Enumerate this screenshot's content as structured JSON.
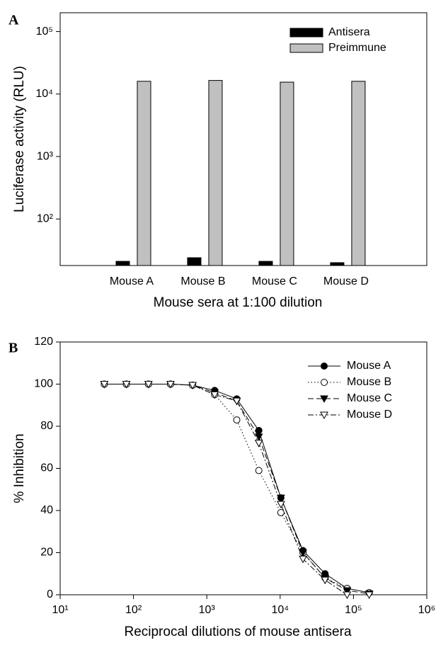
{
  "chart_data": [
    {
      "type": "bar",
      "panel_label": "A",
      "ylabel": "Luciferase activity (RLU)",
      "xlabel": "Mouse sera at 1:100 dilution",
      "categories": [
        "Mouse A",
        "Mouse B",
        "Mouse C",
        "Mouse D"
      ],
      "series": [
        {
          "name": "Antisera",
          "color": "#000000",
          "values": [
            21,
            24,
            21,
            20
          ]
        },
        {
          "name": "Preimmune",
          "color": "#c0c0c0",
          "values": [
            16000,
            16500,
            15500,
            16000
          ]
        }
      ],
      "ylog": true,
      "ylim": [
        18,
        200000
      ],
      "yticks": [
        {
          "value": 100,
          "label": "10²"
        },
        {
          "value": 1000,
          "label": "10³"
        },
        {
          "value": 10000,
          "label": "10⁴"
        },
        {
          "value": 100000,
          "label": "10⁵"
        }
      ],
      "legend": "upper right"
    },
    {
      "type": "line",
      "panel_label": "B",
      "ylabel": "% Inhibition",
      "xlabel": "Reciprocal dilutions of mouse antisera",
      "x": [
        40,
        80,
        160,
        320,
        640,
        1280,
        2560,
        5120,
        10240,
        20480,
        40960,
        81920,
        163840
      ],
      "series": [
        {
          "name": "Mouse A",
          "color": "#000000",
          "marker": "circle",
          "filled": true,
          "dash": "none",
          "values": [
            100,
            100,
            100,
            100,
            99.5,
            97,
            93,
            78,
            46,
            21,
            10,
            3,
            1
          ]
        },
        {
          "name": "Mouse B",
          "color": "#000000",
          "marker": "circle",
          "filled": false,
          "dash": "1.5 3",
          "values": [
            100,
            100,
            100,
            100,
            99.5,
            95,
            83,
            59,
            39,
            20,
            8,
            3,
            1
          ]
        },
        {
          "name": "Mouse C",
          "color": "#000000",
          "marker": "triangle-down",
          "filled": true,
          "dash": "8 4",
          "values": [
            100,
            100,
            100,
            100,
            99.5,
            96,
            92,
            75,
            46,
            20,
            8,
            2,
            0.5
          ]
        },
        {
          "name": "Mouse D",
          "color": "#000000",
          "marker": "triangle-down",
          "filled": false,
          "dash": "8 3 2 3",
          "values": [
            100,
            100,
            100,
            100,
            99.5,
            95,
            92,
            72,
            43,
            17,
            7,
            0,
            0
          ]
        }
      ],
      "xlog": true,
      "xlim": [
        10,
        1000000
      ],
      "xticks": [
        {
          "value": 10,
          "label": "10¹"
        },
        {
          "value": 100,
          "label": "10²"
        },
        {
          "value": 1000,
          "label": "10³"
        },
        {
          "value": 10000,
          "label": "10⁴"
        },
        {
          "value": 100000,
          "label": "10⁵"
        },
        {
          "value": 1000000,
          "label": "10⁶"
        }
      ],
      "ylim": [
        0,
        120
      ],
      "yticks": [
        0,
        20,
        40,
        60,
        80,
        100,
        120
      ],
      "legend": "upper right"
    }
  ]
}
